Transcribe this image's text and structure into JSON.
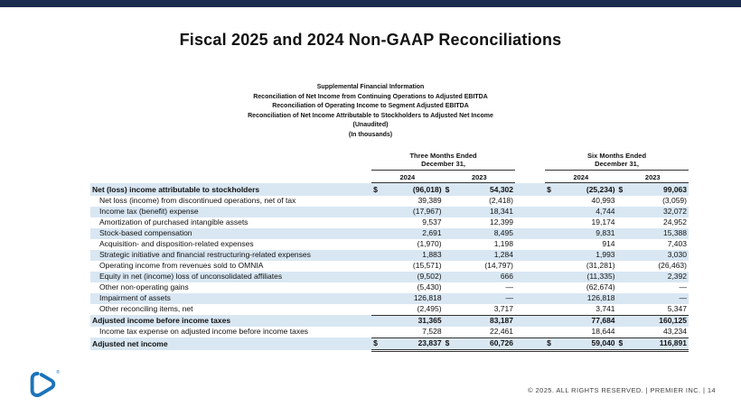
{
  "title": "Fiscal 2025 and 2024 Non-GAAP Reconciliations",
  "subtitle_lines": [
    "Supplemental Financial Information",
    "Reconciliation of Net Income from Continuing Operations to Adjusted EBITDA",
    "Reconciliation of Operating Income to Segment Adjusted EBITDA",
    "Reconciliation of Net Income Attributable to Stockholders to Adjusted Net Income",
    "(Unaudited)",
    "(In thousands)"
  ],
  "table": {
    "currency_symbol": "$",
    "group_headers": [
      {
        "line1": "Three Months Ended",
        "line2": "December 31,"
      },
      {
        "line1": "Six Months Ended",
        "line2": "December 31,"
      }
    ],
    "year_headers": [
      "2024",
      "2023",
      "2024",
      "2023"
    ],
    "rows": [
      {
        "label": "Net (loss) income attributable to stockholders",
        "values": [
          "(96,018)",
          "54,302",
          "(25,234)",
          "99,063"
        ],
        "dollar": true,
        "bold": true,
        "shaded": true,
        "indent": false
      },
      {
        "label": "Net loss (income) from discontinued operations, net of tax",
        "values": [
          "39,389",
          "(2,418)",
          "40,993",
          "(3,059)"
        ],
        "indent": true
      },
      {
        "label": "Income tax (benefit) expense",
        "values": [
          "(17,967)",
          "18,341",
          "4,744",
          "32,072"
        ],
        "shaded": true,
        "indent": true
      },
      {
        "label": "Amortization of purchased intangible assets",
        "values": [
          "9,537",
          "12,399",
          "19,174",
          "24,952"
        ],
        "indent": true
      },
      {
        "label": "Stock-based compensation",
        "values": [
          "2,691",
          "8,495",
          "9,831",
          "15,388"
        ],
        "shaded": true,
        "indent": true
      },
      {
        "label": "Acquisition- and disposition-related expenses",
        "values": [
          "(1,970)",
          "1,198",
          "914",
          "7,403"
        ],
        "indent": true
      },
      {
        "label": "Strategic initiative and financial restructuring-related expenses",
        "values": [
          "1,883",
          "1,284",
          "1,993",
          "3,030"
        ],
        "shaded": true,
        "indent": true
      },
      {
        "label": "Operating income from revenues sold to OMNIA",
        "values": [
          "(15,571)",
          "(14,797)",
          "(31,281)",
          "(26,463)"
        ],
        "indent": true
      },
      {
        "label": "Equity in net (income) loss of unconsolidated affiliates",
        "values": [
          "(9,502)",
          "666",
          "(11,335)",
          "2,392"
        ],
        "shaded": true,
        "indent": true
      },
      {
        "label": "Other non-operating gains",
        "values": [
          "(5,430)",
          "—",
          "(62,674)",
          "—"
        ],
        "indent": true
      },
      {
        "label": "Impairment of assets",
        "values": [
          "126,818",
          "—",
          "126,818",
          "—"
        ],
        "shaded": true,
        "indent": true
      },
      {
        "label": "Other reconciling items, net",
        "values": [
          "(2,495)",
          "3,717",
          "3,741",
          "5,347"
        ],
        "indent": true
      },
      {
        "label": "Adjusted income before income taxes",
        "values": [
          "31,365",
          "83,187",
          "77,684",
          "160,125"
        ],
        "bold": true,
        "shaded": true,
        "top_border": true
      },
      {
        "label": "Income tax expense on adjusted income before income taxes",
        "values": [
          "7,528",
          "22,461",
          "18,644",
          "43,234"
        ],
        "indent": true
      },
      {
        "label": "Adjusted net income",
        "values": [
          "23,837",
          "60,726",
          "59,040",
          "116,891"
        ],
        "dollar": true,
        "bold": true,
        "shaded": true,
        "top_border": true,
        "double_bottom": true
      }
    ]
  },
  "footer": {
    "text": "© 2025. ALL RIGHTS RESERVED.  |  PREMIER INC.  |  14"
  },
  "logo": {
    "registered_mark": "®"
  },
  "colors": {
    "top_bar": "#1a2b4d",
    "row_shade": "#d9e7f3",
    "title_text": "#111111",
    "footer_text": "#3f3f3f",
    "logo_blue": "#1b74ba",
    "rule": "#333333"
  }
}
